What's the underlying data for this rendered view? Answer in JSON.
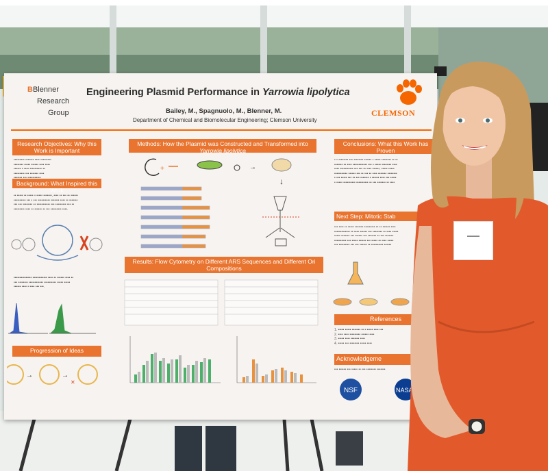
{
  "poster": {
    "title_prefix": "Engineering Plasmid Performance in ",
    "title_species": "Yarrowia lipolytica",
    "authors": "Bailey, M., Spagnuolo, M., Blenner, M.",
    "department": "Department of Chemical and Biomolecular Engineering; Clemson University",
    "group_logo": [
      "Blenner",
      "Research",
      "Group"
    ],
    "university_logo": "CLEMSON",
    "sections": {
      "research_objectives": "Research Objectives: Why this Work is Important",
      "background": "Background: What Inspired this Work",
      "methods_prefix": "Methods: How the Plasmid was Constructed and Transformed into ",
      "methods_species": "Yarrowia lipolytica",
      "results": "Results: Flow Cytometry on Different ARS Sequences and Different Ori Compositions",
      "progression": "Progression of Ideas",
      "conclusions": "Conclusions: What this Work has Proven",
      "next_step": "Next Step: Mitotic Stab",
      "references": "References",
      "acknowledgements": "Acknowledgeme"
    },
    "logos": [
      "NSF",
      "NASA"
    ]
  },
  "colors": {
    "accent": "#e8742f",
    "clemson_orange": "#f56600",
    "dress": "#e25a2b",
    "hair": "#c99a5e",
    "poster_bg": "#f6f3f0",
    "chart_green": "#4caf6a",
    "chart_orange": "#e8923f"
  }
}
